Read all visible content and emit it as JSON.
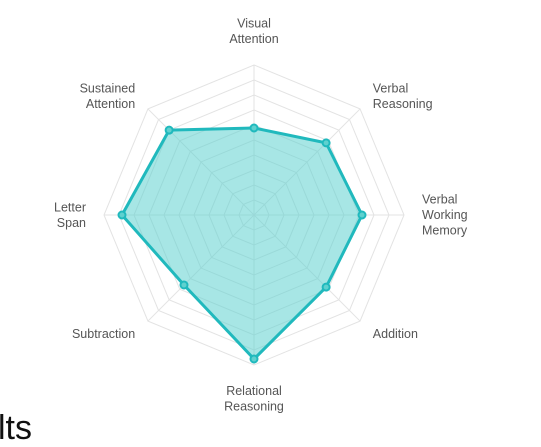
{
  "chart_data": {
    "type": "radar",
    "axes": [
      {
        "lines": [
          "Visual",
          "Attention"
        ],
        "value": 0.58
      },
      {
        "lines": [
          "Verbal",
          "Reasoning"
        ],
        "value": 0.68
      },
      {
        "lines": [
          "Verbal",
          "Working",
          "Memory"
        ],
        "value": 0.72
      },
      {
        "lines": [
          "Addition"
        ],
        "value": 0.68
      },
      {
        "lines": [
          "Relational",
          "Reasoning"
        ],
        "value": 0.96
      },
      {
        "lines": [
          "Subtraction"
        ],
        "value": 0.66
      },
      {
        "lines": [
          "Letter",
          "Span"
        ],
        "value": 0.88
      },
      {
        "lines": [
          "Sustained",
          "Attention"
        ],
        "value": 0.8
      }
    ],
    "range": [
      0,
      1
    ],
    "grid": true,
    "series_color": "#20b9bd",
    "fill_color": "#5fd1cf",
    "grid_color": "#e3e3e3"
  },
  "footer_fragment": "lts"
}
